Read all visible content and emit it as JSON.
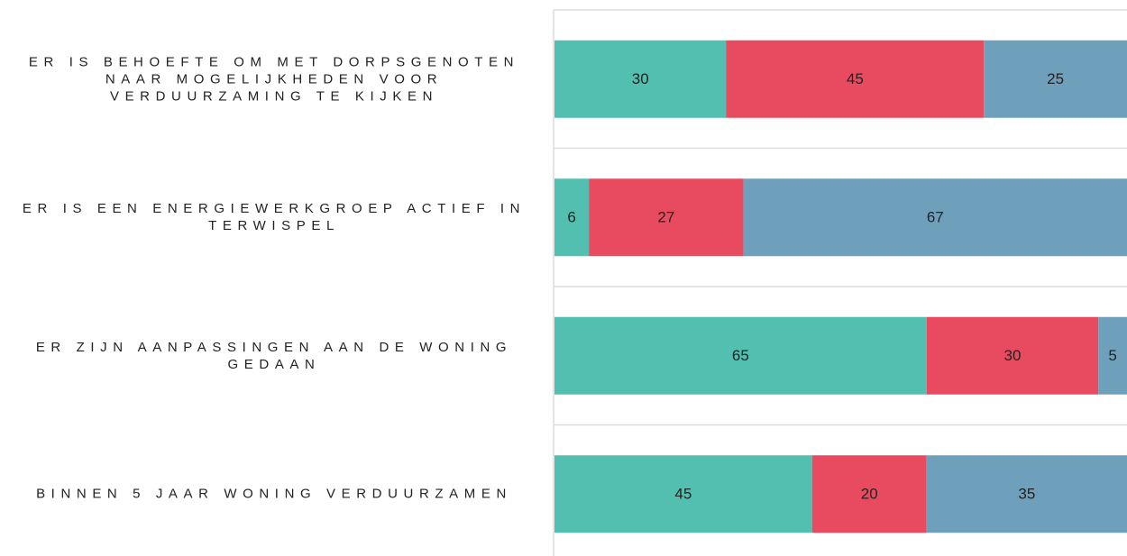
{
  "chart_data": {
    "type": "stacked_barh",
    "categories": [
      "ER IS BEHOEFTE OM MET DORPSGENOTEN NAAR MOGELIJKHEDEN VOOR VERDUURZAMING TE KIJKEN",
      "ER IS EEN ENERGIEWERKGROEP ACTIEF IN TERWISPEL",
      "ER ZIJN AANPASSINGEN AAN DE WONING GEDAAN",
      "BINNEN 5 JAAR WONING VERDUURZAMEN"
    ],
    "series": [
      {
        "color": "#52bfb0",
        "values": [
          30,
          6,
          65,
          45
        ]
      },
      {
        "color": "#e84b5f",
        "values": [
          45,
          27,
          30,
          20
        ]
      },
      {
        "color": "#6fa0bb",
        "values": [
          25,
          67,
          5,
          35
        ]
      }
    ],
    "xlim": [
      0,
      100
    ]
  }
}
